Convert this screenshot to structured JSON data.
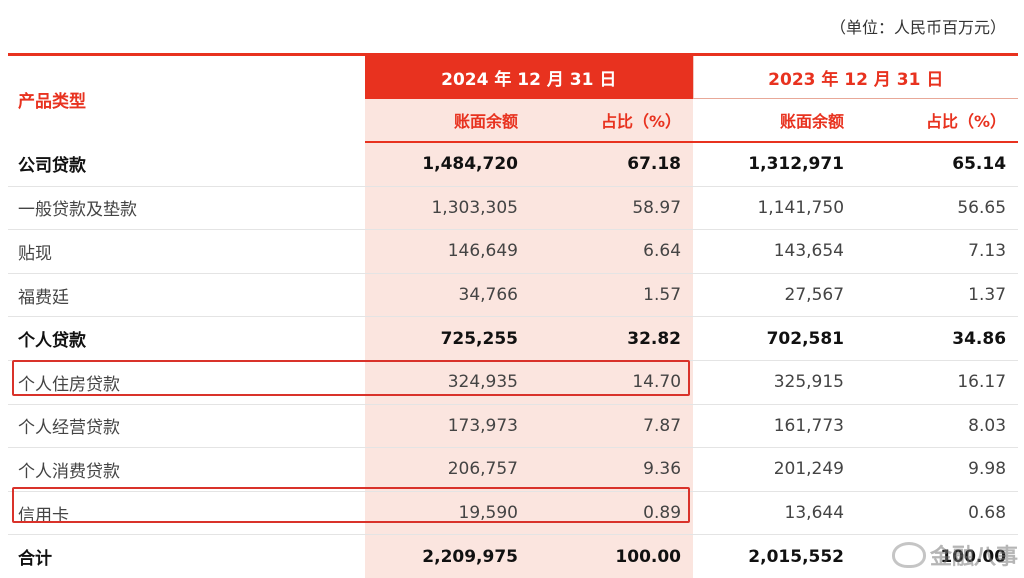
{
  "unit_label": "（单位：人民币百万元）",
  "header": {
    "product_type": "产品类型",
    "year_2024": "2024 年 12 月 31 日",
    "year_2023": "2023 年 12 月 31 日",
    "book_balance": "账面余额",
    "share_pct": "占比（%）"
  },
  "rows": [
    {
      "name": "公司贷款",
      "b24": "1,484,720",
      "p24": "67.18",
      "b23": "1,312,971",
      "p23": "65.14"
    },
    {
      "name": "一般贷款及垫款",
      "b24": "1,303,305",
      "p24": "58.97",
      "b23": "1,141,750",
      "p23": "56.65"
    },
    {
      "name": "贴现",
      "b24": "146,649",
      "p24": "6.64",
      "b23": "143,654",
      "p23": "7.13"
    },
    {
      "name": "福费廷",
      "b24": "34,766",
      "p24": "1.57",
      "b23": "27,567",
      "p23": "1.37"
    },
    {
      "name": "个人贷款",
      "b24": "725,255",
      "p24": "32.82",
      "b23": "702,581",
      "p23": "34.86"
    },
    {
      "name": "个人住房贷款",
      "b24": "324,935",
      "p24": "14.70",
      "b23": "325,915",
      "p23": "16.17"
    },
    {
      "name": "个人经营贷款",
      "b24": "173,973",
      "p24": "7.87",
      "b23": "161,773",
      "p23": "8.03"
    },
    {
      "name": "个人消费贷款",
      "b24": "206,757",
      "p24": "9.36",
      "b23": "201,249",
      "p23": "9.98"
    },
    {
      "name": "信用卡",
      "b24": "19,590",
      "p24": "0.89",
      "b23": "13,644",
      "p23": "0.68"
    },
    {
      "name": "合计",
      "b24": "2,209,975",
      "p24": "100.00",
      "b23": "2,015,552",
      "p23": "100.00"
    }
  ],
  "watermark": "金融八事",
  "colors": {
    "accent": "#e8321f",
    "tint": "#fbe5df",
    "highlight_box": "#d9322a"
  }
}
